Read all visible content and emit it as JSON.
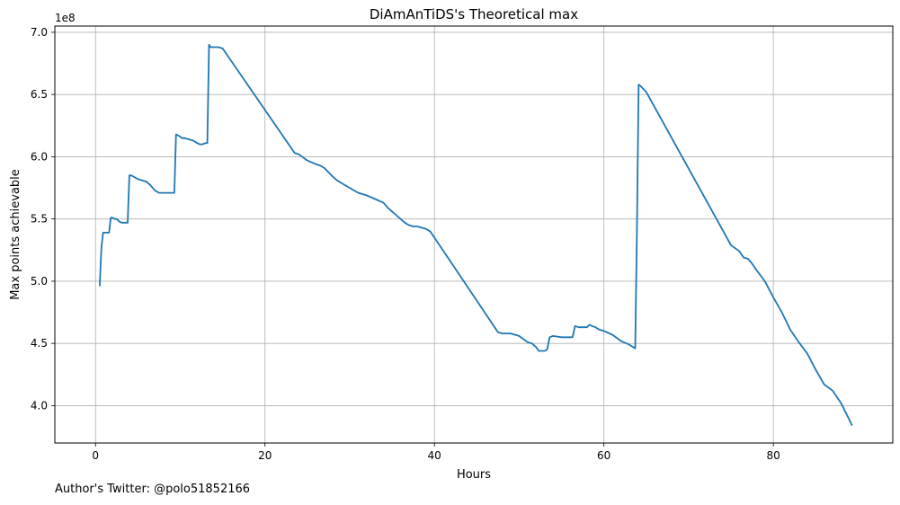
{
  "chart_data": {
    "type": "line",
    "title": "DiAmAnTiDS's Theoretical max",
    "xlabel": "Hours",
    "ylabel": "Max points achievable",
    "y_multiplier_label": "1e8",
    "xlim": [
      -4.8,
      94.1
    ],
    "ylim": [
      3.7,
      7.05
    ],
    "x_ticks": [
      0,
      20,
      40,
      60,
      80
    ],
    "x_tick_labels": [
      "0",
      "20",
      "40",
      "60",
      "80"
    ],
    "y_ticks": [
      4.0,
      4.5,
      5.0,
      5.5,
      6.0,
      6.5,
      7.0
    ],
    "y_tick_labels": [
      "4.0",
      "4.5",
      "5.0",
      "5.5",
      "6.0",
      "6.5",
      "7.0"
    ],
    "grid": true,
    "line_color": "#1f77b4",
    "grid_color": "#b0b0b0",
    "series": [
      {
        "x": [
          0.5,
          0.7,
          0.9,
          1.3,
          1.6,
          1.8,
          2.0,
          2.3,
          2.5,
          2.8,
          3.1,
          3.5,
          3.8,
          4.0,
          4.2,
          4.5,
          5.0,
          5.5,
          6.0,
          6.5,
          7.0,
          7.5,
          8.0,
          8.5,
          9.0,
          9.3,
          9.5,
          9.8,
          10.2,
          10.5,
          11.0,
          11.5,
          12.0,
          12.3,
          12.6,
          13.0,
          13.2,
          13.4,
          13.6,
          14.0,
          14.5,
          15.0,
          23.5,
          24.0,
          25.0,
          26.0,
          26.5,
          27.0,
          28.0,
          28.5,
          29.0,
          30.0,
          31.0,
          32.0,
          33.0,
          34.0,
          34.5,
          35.0,
          35.5,
          36.0,
          36.5,
          37.0,
          37.5,
          38.0,
          39.0,
          39.5,
          47.5,
          48.0,
          48.5,
          49.0,
          50.0,
          51.0,
          51.5,
          52.0,
          52.3,
          52.6,
          53.0,
          53.3,
          53.6,
          54.0,
          55.0,
          55.5,
          56.0,
          56.3,
          56.6,
          57.0,
          58.0,
          58.3,
          58.6,
          59.0,
          59.5,
          60.0,
          61.0,
          62.0,
          63.0,
          63.7,
          63.9,
          64.1,
          64.3,
          65.0,
          75.0,
          76.0,
          76.5,
          77.0,
          77.5,
          78.0,
          79.0,
          80.0,
          81.0,
          82.0,
          83.0,
          84.0,
          85.0,
          86.0,
          87.0,
          87.5,
          88.0,
          89.3
        ],
        "y": [
          4.96,
          5.27,
          5.39,
          5.39,
          5.39,
          5.51,
          5.51,
          5.5,
          5.5,
          5.48,
          5.47,
          5.47,
          5.47,
          5.85,
          5.85,
          5.84,
          5.82,
          5.81,
          5.8,
          5.77,
          5.73,
          5.71,
          5.71,
          5.71,
          5.71,
          5.71,
          6.18,
          6.17,
          6.15,
          6.15,
          6.14,
          6.13,
          6.11,
          6.1,
          6.1,
          6.11,
          6.11,
          6.9,
          6.88,
          6.88,
          6.88,
          6.87,
          6.03,
          6.02,
          5.97,
          5.94,
          5.93,
          5.91,
          5.84,
          5.81,
          5.79,
          5.75,
          5.71,
          5.69,
          5.66,
          5.63,
          5.59,
          5.56,
          5.53,
          5.5,
          5.47,
          5.45,
          5.44,
          5.44,
          5.42,
          5.4,
          4.59,
          4.58,
          4.58,
          4.58,
          4.56,
          4.51,
          4.5,
          4.47,
          4.44,
          4.44,
          4.44,
          4.45,
          4.55,
          4.56,
          4.55,
          4.55,
          4.55,
          4.55,
          4.64,
          4.63,
          4.63,
          4.65,
          4.64,
          4.63,
          4.61,
          4.6,
          4.57,
          4.52,
          4.49,
          4.46,
          5.4,
          6.58,
          6.57,
          6.52,
          5.29,
          5.24,
          5.19,
          5.18,
          5.14,
          5.09,
          5.0,
          4.87,
          4.75,
          4.61,
          4.51,
          4.42,
          4.29,
          4.17,
          4.12,
          4.07,
          4.02,
          3.84
        ]
      }
    ]
  },
  "footnote": "Author's Twitter: @polo51852166"
}
